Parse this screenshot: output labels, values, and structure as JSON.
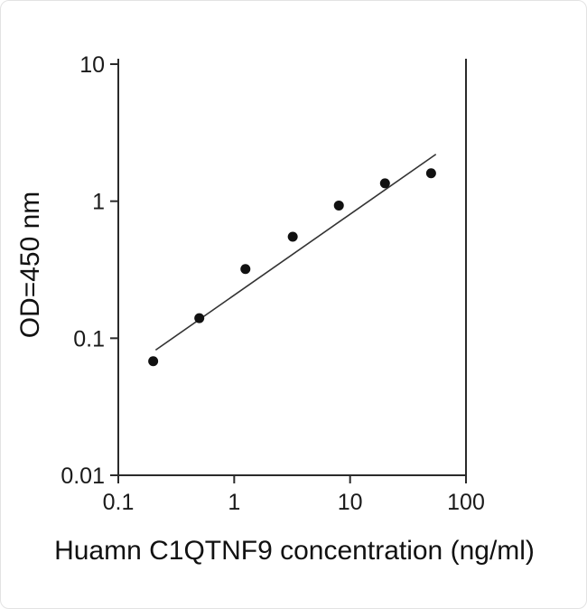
{
  "chart_data": {
    "type": "scatter",
    "title": "",
    "xlabel": "Huamn C1QTNF9 concentration (ng/ml)",
    "ylabel": "OD=450 nm",
    "x_scale": "log",
    "y_scale": "log",
    "xlim": [
      0.1,
      100
    ],
    "ylim": [
      0.01,
      10
    ],
    "x_ticks": [
      0.1,
      1,
      10,
      100
    ],
    "y_ticks": [
      0.01,
      0.1,
      1,
      10
    ],
    "x_tick_labels": [
      "0.1",
      "1",
      "10",
      "100"
    ],
    "y_tick_labels": [
      "0.01",
      "0.1",
      "1",
      "10"
    ],
    "grid": false,
    "legend": false,
    "point_color": "#111111",
    "line_color": "#333333",
    "axis_color": "#2a2a2a",
    "series": [
      {
        "name": "fit-line",
        "type": "line",
        "x": [
          0.21,
          55
        ],
        "y": [
          0.082,
          2.2
        ]
      },
      {
        "name": "standard-points",
        "type": "scatter",
        "x": [
          0.2,
          0.5,
          1.25,
          3.2,
          8,
          20,
          50
        ],
        "y": [
          0.068,
          0.14,
          0.32,
          0.55,
          0.93,
          1.35,
          1.6
        ]
      }
    ]
  }
}
